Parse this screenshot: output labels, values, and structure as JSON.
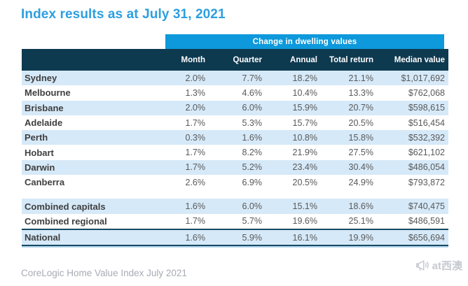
{
  "title": "Index results as at July 31, 2021",
  "chart_data": {
    "type": "table",
    "title": "Index results as at July 31, 2021",
    "band_label": "Change in dwelling values",
    "columns": [
      "Month",
      "Quarter",
      "Annual",
      "Total return",
      "Median value"
    ],
    "sections": {
      "cities": [
        {
          "name": "Sydney",
          "values": [
            "2.0%",
            "7.7%",
            "18.2%",
            "21.1%",
            "$1,017,692"
          ]
        },
        {
          "name": "Melbourne",
          "values": [
            "1.3%",
            "4.6%",
            "10.4%",
            "13.3%",
            "$762,068"
          ]
        },
        {
          "name": "Brisbane",
          "values": [
            "2.0%",
            "6.0%",
            "15.9%",
            "20.7%",
            "$598,615"
          ]
        },
        {
          "name": "Adelaide",
          "values": [
            "1.7%",
            "5.3%",
            "15.7%",
            "20.5%",
            "$516,454"
          ]
        },
        {
          "name": "Perth",
          "values": [
            "0.3%",
            "1.6%",
            "10.8%",
            "15.8%",
            "$532,392"
          ]
        },
        {
          "name": "Hobart",
          "values": [
            "1.7%",
            "8.2%",
            "21.9%",
            "27.5%",
            "$621,102"
          ]
        },
        {
          "name": "Darwin",
          "values": [
            "1.7%",
            "5.2%",
            "23.4%",
            "30.4%",
            "$486,054"
          ]
        },
        {
          "name": "Canberra",
          "values": [
            "2.6%",
            "6.9%",
            "20.5%",
            "24.9%",
            "$793,872"
          ]
        }
      ],
      "combined": [
        {
          "name": "Combined capitals",
          "values": [
            "1.6%",
            "6.0%",
            "15.1%",
            "18.6%",
            "$740,475"
          ]
        },
        {
          "name": "Combined regional",
          "values": [
            "1.7%",
            "5.7%",
            "19.6%",
            "25.1%",
            "$486,591"
          ]
        }
      ],
      "national": [
        {
          "name": "National",
          "values": [
            "1.6%",
            "5.9%",
            "16.1%",
            "19.9%",
            "$656,694"
          ]
        }
      ]
    },
    "source": "CoreLogic Home Value Index July 2021"
  },
  "watermark": {
    "label": "at西澳",
    "icon": "megaphone-icon"
  },
  "colors": {
    "title_blue": "#2d9fe0",
    "band_blue": "#0d99db",
    "header_navy": "#0e3a50",
    "row_stripe": "#d6e9f8",
    "national_border": "#174a63",
    "body_text": "#595959",
    "row_label_text": "#3f3f3f",
    "source_grey": "#a7abb4",
    "watermark_grey": "#c6cad1"
  }
}
